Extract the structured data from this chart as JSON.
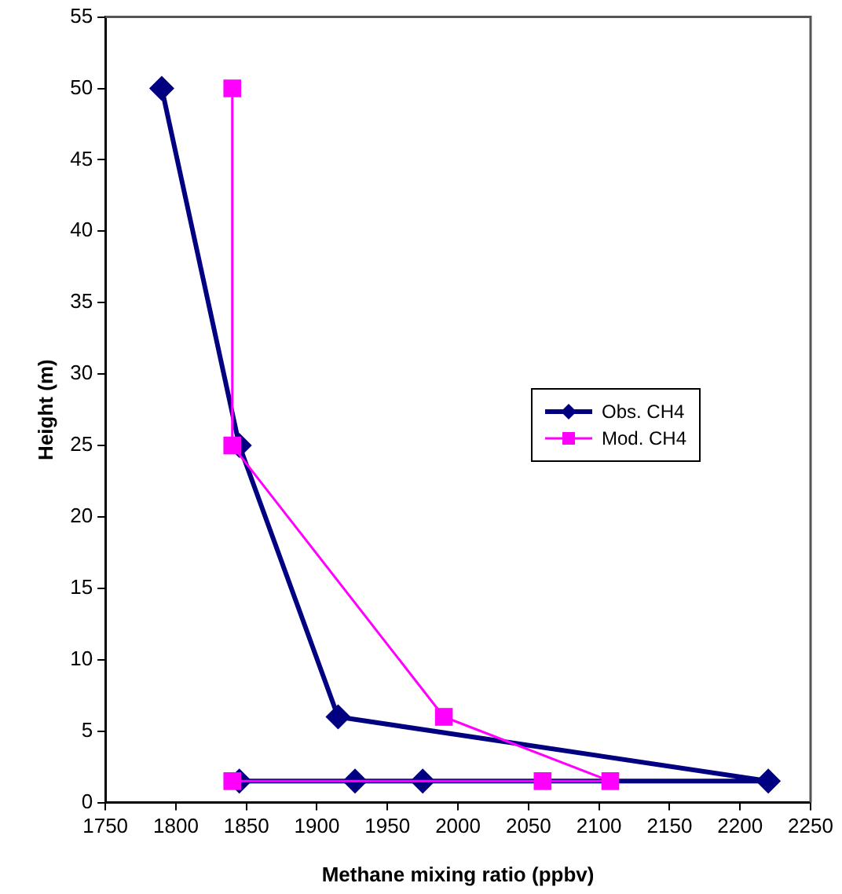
{
  "chart_data": {
    "type": "line",
    "xlabel": "Methane mixing ratio (ppbv)",
    "ylabel": "Height (m)",
    "xlim": [
      1750,
      2250
    ],
    "xticks": [
      1750,
      1800,
      1850,
      1900,
      1950,
      2000,
      2050,
      2100,
      2150,
      2200,
      2250
    ],
    "ylim": [
      0,
      55
    ],
    "yticks": [
      0,
      5,
      10,
      15,
      20,
      25,
      30,
      35,
      40,
      45,
      50,
      55
    ],
    "grid": false,
    "legend": "right",
    "series": [
      {
        "name": "Obs. CH4",
        "color": "#000080",
        "marker": "diamond",
        "x": [
          1790,
          1845,
          1915,
          2220,
          1975,
          1927,
          1845
        ],
        "values": [
          50,
          25,
          6,
          1.5,
          1.5,
          1.5,
          1.5
        ]
      },
      {
        "name": "Mod. CH4",
        "color": "#ff00ff",
        "marker": "square",
        "x": [
          1840,
          1840,
          1990,
          2108,
          2060,
          1840
        ],
        "values": [
          50,
          25,
          6,
          1.5,
          1.5,
          1.5
        ]
      }
    ]
  }
}
